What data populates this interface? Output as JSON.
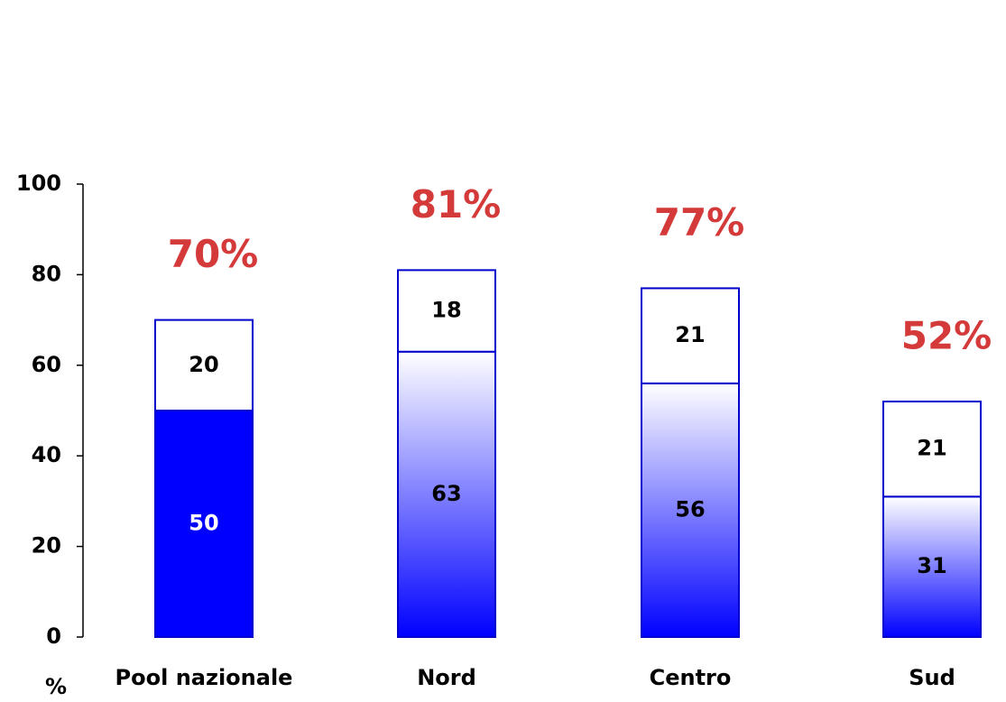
{
  "chart_data": {
    "type": "stacked_bar",
    "y_label": "%",
    "categories": [
      "Pool nazionale",
      "Nord",
      "Centro",
      "Sud"
    ],
    "series": [
      {
        "color": "#0000ff",
        "values": [
          50,
          63,
          56,
          31
        ],
        "gradient": [
          false,
          true,
          true,
          true
        ]
      },
      {
        "color": "#ffffff",
        "values": [
          20,
          18,
          21,
          21
        ]
      }
    ],
    "totals": [
      70,
      81,
      77,
      52
    ],
    "total_labels": [
      "70%",
      "81%",
      "77%",
      "52%"
    ],
    "total_label_color": "#d43a3a",
    "ylim": [
      0,
      100
    ],
    "yticks": [
      0,
      20,
      40,
      60,
      80,
      100
    ]
  }
}
